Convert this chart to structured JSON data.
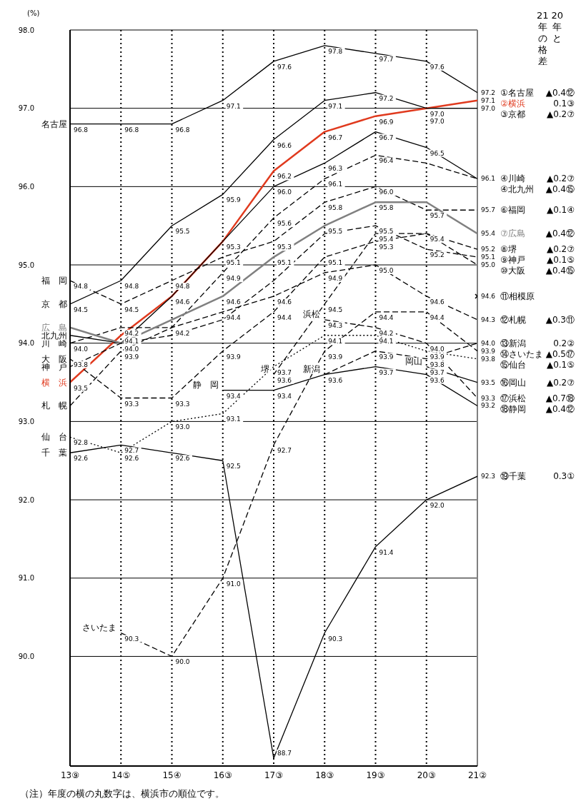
{
  "chart_data": {
    "type": "line",
    "ylabel": "(%)",
    "legend_title": "20年と21年の格差",
    "categories": [
      "13⑨",
      "14⑤",
      "15④",
      "16③",
      "17③",
      "18③",
      "19③",
      "20③",
      "21②"
    ],
    "ylim": [
      88.6,
      98
    ],
    "yticks": [
      {
        "value": 90,
        "label": "90.0"
      },
      {
        "value": 91,
        "label": "91.0"
      },
      {
        "value": 92,
        "label": "92.0"
      },
      {
        "value": 93,
        "label": "93.0"
      },
      {
        "value": 94,
        "label": "94.0"
      },
      {
        "value": 95,
        "label": "95.0"
      },
      {
        "value": 96,
        "label": "96.0"
      },
      {
        "value": 97,
        "label": "97.0"
      },
      {
        "value": 98,
        "label": "98.0"
      }
    ],
    "grid": true,
    "series": [
      {
        "name": "名古屋",
        "color": "#000000",
        "line_style": "solid",
        "values": [
          96.8,
          96.8,
          96.8,
          97.1,
          97.6,
          97.8,
          97.7,
          97.6,
          97.2
        ],
        "value_labels": [
          "96.8",
          "96.8",
          "96.8",
          "97.1",
          "97.6",
          "97.8",
          "97.7",
          "97.6",
          "97.2"
        ]
      },
      {
        "name": "横　浜",
        "color": "#e03a1e",
        "line_style": "solid",
        "values": [
          93.5,
          94.1,
          94.6,
          95.3,
          96.2,
          96.7,
          96.9,
          97.0,
          97.1
        ],
        "value_labels": [
          "93.5",
          "94.1",
          "94.6",
          "95.3",
          "96.2",
          "96.7",
          "96.9",
          "97.0",
          "97.1"
        ]
      },
      {
        "name": "京　都",
        "color": "#000000",
        "line_style": "solid",
        "values": [
          94.5,
          94.8,
          95.5,
          95.9,
          96.6,
          97.1,
          97.2,
          97.0,
          97.0
        ],
        "value_labels": [
          "94.5",
          "94.8",
          "95.5",
          "95.9",
          "96.6",
          "97.1",
          "97.2",
          "97.0",
          "97.0"
        ]
      },
      {
        "name": "川　崎",
        "color": "#000000",
        "line_style": "dashed",
        "values": [
          94.0,
          94.2,
          94.2,
          94.9,
          95.6,
          96.1,
          96.4,
          96.3,
          96.1
        ],
        "value_labels": [
          "94.0",
          "94.2",
          null,
          "94.9",
          "95.6",
          "96.1",
          "96.4",
          null,
          "96.1"
        ]
      },
      {
        "name": "北九州",
        "color": "#000000",
        "line_style": "solid",
        "values": [
          94.1,
          94.0,
          94.6,
          95.3,
          96.0,
          96.3,
          96.7,
          96.5,
          96.1
        ],
        "value_labels": [
          null,
          "94.0",
          null,
          null,
          "96.0",
          "96.3",
          "96.7",
          "96.5",
          null
        ]
      },
      {
        "name": "福　岡",
        "color": "#000000",
        "line_style": "dashed",
        "values": [
          94.8,
          94.5,
          94.8,
          95.1,
          95.3,
          95.8,
          96.0,
          95.7,
          95.7
        ],
        "value_labels": [
          "94.8",
          "94.5",
          "94.8",
          "95.1",
          "95.3",
          "95.8",
          "96.0",
          "95.7",
          "95.7"
        ]
      },
      {
        "name": "広　島",
        "color": "#808080",
        "line_style": "solid",
        "values": [
          94.2,
          94.0,
          94.3,
          94.6,
          95.1,
          95.5,
          95.8,
          95.8,
          95.4
        ],
        "value_labels": [
          null,
          null,
          null,
          "94.6",
          "95.1",
          "95.5",
          "95.8",
          null,
          "95.4"
        ]
      },
      {
        "name": "堺",
        "color": "#000000",
        "line_style": "dashed",
        "values": [
          null,
          null,
          null,
          null,
          93.6,
          94.5,
          95.4,
          95.4,
          95.2
        ],
        "value_labels": [
          null,
          null,
          null,
          null,
          "93.6",
          "94.5",
          "95.4",
          "95.4",
          "95.2"
        ]
      },
      {
        "name": "神　戸",
        "color": "#000000",
        "line_style": "dashed",
        "values": [
          93.7,
          94.0,
          94.1,
          94.3,
          94.8,
          95.4,
          95.5,
          95.2,
          95.1
        ],
        "value_labels": [
          null,
          null,
          null,
          null,
          null,
          null,
          "95.5",
          "95.2",
          "95.1"
        ]
      },
      {
        "name": "大　阪",
        "color": "#000000",
        "line_style": "dashed",
        "values": [
          93.8,
          93.3,
          93.3,
          93.9,
          94.4,
          95.1,
          95.3,
          95.4,
          95.0
        ],
        "value_labels": [
          "93.8",
          "93.3",
          "93.3",
          "93.9",
          "94.4",
          "95.1",
          "95.3",
          null,
          "95.0"
        ]
      },
      {
        "color": "#000000",
        "line_style": "solid",
        "marker": "cross",
        "values": [
          null,
          null,
          null,
          null,
          null,
          null,
          null,
          null,
          94.6
        ],
        "value_labels": [
          null,
          null,
          null,
          null,
          null,
          null,
          null,
          null,
          "94.6"
        ]
      },
      {
        "name": "札　幌",
        "color": "#000000",
        "line_style": "dashed",
        "values": [
          93.2,
          93.9,
          94.2,
          94.4,
          94.6,
          94.9,
          95.0,
          94.6,
          94.3
        ],
        "value_labels": [
          null,
          "93.9",
          "94.2",
          "94.4",
          "94.6",
          "94.9",
          "95.0",
          "94.6",
          "94.3"
        ]
      },
      {
        "name": "新潟",
        "color": "#000000",
        "line_style": "dashed",
        "values": [
          null,
          null,
          null,
          null,
          null,
          93.6,
          93.9,
          93.8,
          94.0
        ],
        "value_labels": [
          null,
          null,
          null,
          null,
          null,
          null,
          "93.9",
          "93.8",
          "94.0"
        ]
      },
      {
        "name": "さいたま",
        "color": "#000000",
        "line_style": "dashed",
        "values": [
          null,
          90.3,
          90.0,
          91.0,
          92.7,
          93.9,
          94.4,
          94.4,
          93.9
        ],
        "value_labels": [
          null,
          "90.3",
          "90.0",
          "91.0",
          "92.7",
          "93.9",
          "94.4",
          "94.4",
          "93.9"
        ]
      },
      {
        "name": "仙　台",
        "color": "#000000",
        "line_style": "dotted",
        "values": [
          92.8,
          92.6,
          93.0,
          93.1,
          93.7,
          94.1,
          94.1,
          93.9,
          93.8
        ],
        "value_labels": [
          "92.8",
          "92.6",
          "93.0",
          "93.1",
          "93.7",
          "94.1",
          "94.1",
          "93.9",
          "93.8"
        ]
      },
      {
        "name": "岡山",
        "color": "#000000",
        "line_style": "solid",
        "values": [
          null,
          null,
          null,
          null,
          null,
          null,
          null,
          93.7,
          93.5
        ],
        "value_labels": [
          null,
          null,
          null,
          null,
          null,
          null,
          null,
          "93.7",
          "93.5"
        ]
      },
      {
        "name": "浜松",
        "color": "#000000",
        "line_style": "dashed",
        "values": [
          null,
          null,
          null,
          null,
          null,
          94.3,
          94.2,
          94.0,
          93.3
        ],
        "value_labels": [
          null,
          null,
          null,
          null,
          null,
          "94.3",
          "94.2",
          "94.0",
          "93.3"
        ]
      },
      {
        "name": "静　岡",
        "color": "#000000",
        "line_style": "solid",
        "values": [
          null,
          null,
          null,
          93.4,
          93.4,
          93.6,
          93.7,
          93.6,
          93.2
        ],
        "value_labels": [
          null,
          null,
          null,
          "93.4",
          "93.4",
          "93.6",
          "93.7",
          "93.6",
          "93.2"
        ]
      },
      {
        "name": "千　葉",
        "color": "#000000",
        "line_style": "solid",
        "values": [
          92.6,
          92.7,
          92.6,
          92.5,
          88.7,
          90.3,
          91.4,
          92.0,
          92.3
        ],
        "value_labels": [
          "92.6",
          "92.7",
          "92.6",
          "92.5",
          "88.7",
          "90.3",
          "91.4",
          "92.0",
          "92.3"
        ]
      }
    ],
    "annotations": [
      "①名古屋 ▲0.4⑫",
      "②横浜 0.1③",
      "③京都 ▲0.2⑦",
      "④川崎 ▲0.2⑦",
      "④北九州 ▲0.4⑮",
      "⑥福岡 ▲0.1④",
      "⑦広島 ▲0.4⑫",
      "⑧堺 ▲0.2⑦",
      "⑨神戸 ▲0.1⑤",
      "⑩大阪 ▲0.4⑮",
      "⑪相模原",
      "⑫札幌 ▲0.3⑪",
      "⑬新潟 0.2②",
      "⑭さいたま ▲0.5⑰",
      "⑮仙台 ▲0.1⑤",
      "⑯岡山 ▲0.2⑦",
      "⑰浜松 ▲0.7⑱",
      "⑱静岡 ▲0.4⑫",
      "⑲千葉 0.3①",
      "（注）年度の横の丸数字は、横浜市の順位です。"
    ]
  }
}
